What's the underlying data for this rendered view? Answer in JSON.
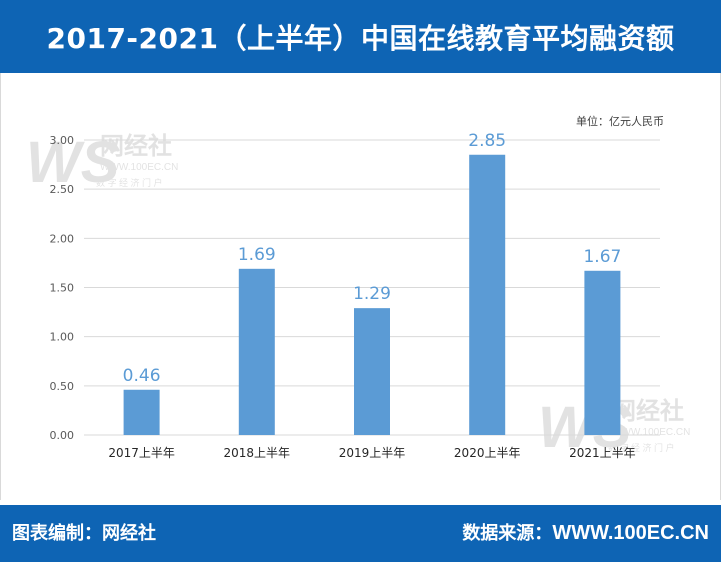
{
  "header": {
    "title": "2017-2021（上半年）中国在线教育平均融资额"
  },
  "unit_label": "单位：亿元人民币",
  "watermark": {
    "logo_letters": "WS",
    "logo_name": "网经社",
    "logo_url": "WWW.100EC.CN",
    "tagline": "数 字 经 济 门 户"
  },
  "footer": {
    "left": "图表编制：网经社",
    "source_label": "数据来源：",
    "source_value": "WWW.100EC.CN"
  },
  "colors": {
    "header_bg": "#0e64b4",
    "bar": "#5b9bd5",
    "data_label": "#5b9bd5",
    "grid": "#d9d9d9",
    "tick_text": "#595959"
  },
  "chart_data": {
    "type": "bar",
    "categories": [
      "2017上半年",
      "2018上半年",
      "2019上半年",
      "2020上半年",
      "2021上半年"
    ],
    "values": [
      0.46,
      1.69,
      1.29,
      2.85,
      1.67
    ],
    "value_labels": [
      "0.46",
      "1.69",
      "1.29",
      "2.85",
      "1.67"
    ],
    "y_ticks": [
      "0.00",
      "0.50",
      "1.00",
      "1.50",
      "2.00",
      "2.50",
      "3.00"
    ],
    "ylim": [
      0,
      3
    ],
    "xlabel": "",
    "ylabel": "",
    "grid": true,
    "legend": "none"
  }
}
